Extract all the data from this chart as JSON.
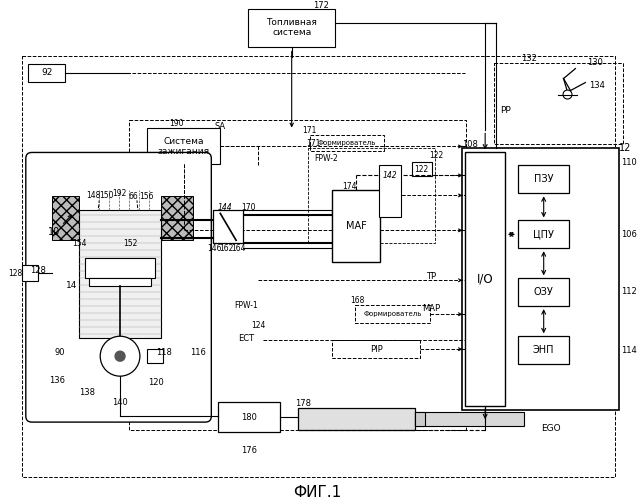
{
  "title": "ФИГ.1",
  "bg_color": "#ffffff",
  "line_color": "#000000",
  "labels": {
    "fuel_system": "Топливная\nсистема",
    "ignition": "Система\nзажигания",
    "former": "Формирователь",
    "pzu": "ПЗУ",
    "cpu": "ЦПУ",
    "ozu": "ОЗУ",
    "enp": "ЭНП",
    "io": "I/O",
    "maf": "MAF",
    "map_label": "MAP",
    "tp": "TP",
    "ego": "EGO",
    "pip": "PIP",
    "ect": "ECT",
    "fpw1": "FPW-1",
    "fpw2": "FPW-2",
    "sa": "SA",
    "pp": "PP",
    "fig": "ФИГ.1"
  }
}
